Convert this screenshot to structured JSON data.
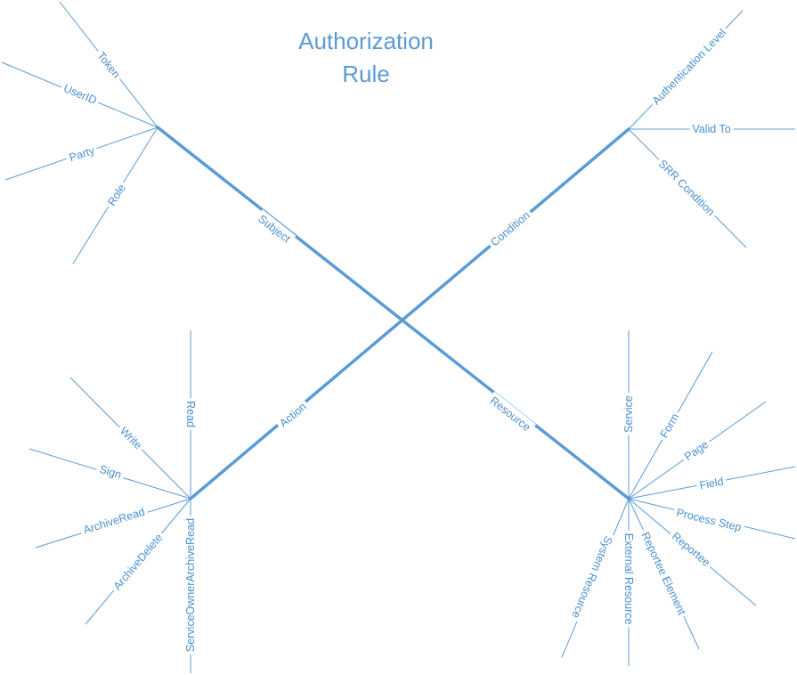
{
  "title": {
    "line1": "Authorization",
    "line2": "Rule"
  },
  "colors": {
    "line": "#5b9bd5",
    "text": "#4a8fcf",
    "background": "#ffffff"
  },
  "branches": {
    "subject": {
      "label": "Subject",
      "attributes": [
        "Token",
        "UserID",
        "Party",
        "Role"
      ]
    },
    "condition": {
      "label": "Condition",
      "attributes": [
        "Authentication Level",
        "Valid To",
        "SRR Condition"
      ]
    },
    "action": {
      "label": "Action",
      "attributes": [
        "Read",
        "Write",
        "Sign",
        "ArchiveRead",
        "ArchiveDelete",
        "ServiceOwnerArchiveRead"
      ]
    },
    "resource": {
      "label": "Resource",
      "attributes": [
        "Service",
        "Form",
        "Page",
        "Field",
        "Process Step",
        "Reportee",
        "Reportee Element",
        "External Resource",
        "System Resource"
      ]
    }
  }
}
